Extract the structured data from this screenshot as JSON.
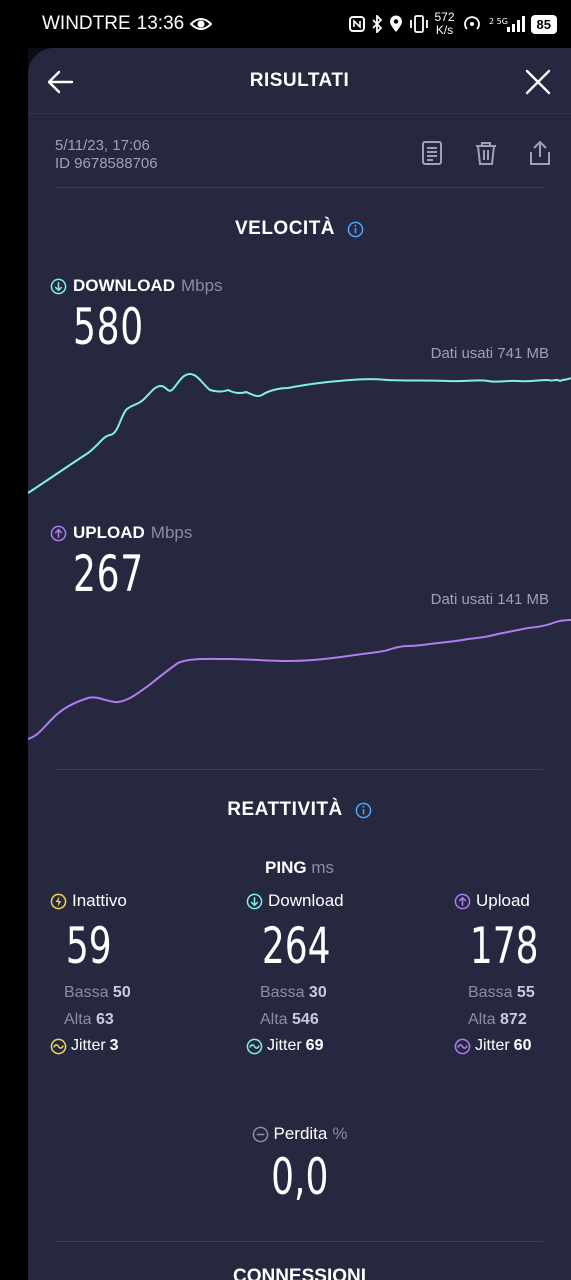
{
  "statusbar": {
    "carrier": "WINDTRE",
    "time": "13:36",
    "net_speed_value": "572",
    "net_speed_unit": "K/s",
    "battery": "85"
  },
  "header": {
    "title": "RISULTATI"
  },
  "meta": {
    "datetime": "5/11/23, 17:06",
    "id": "ID 9678588706"
  },
  "speed": {
    "section_title": "VELOCITÀ",
    "download": {
      "label": "DOWNLOAD",
      "unit": "Mbps",
      "value": "580",
      "data_used": "Dati usati 741 MB",
      "color": "#7ff0e6"
    },
    "upload": {
      "label": "UPLOAD",
      "unit": "Mbps",
      "value": "267",
      "data_used": "Dati usati 141 MB",
      "color": "#b07cf0"
    }
  },
  "reactivity": {
    "section_title": "REATTIVITÀ",
    "ping_label": "PING",
    "ping_unit": "ms",
    "columns": [
      {
        "label": "Inattivo",
        "value": "59",
        "low_label": "Bassa",
        "low": "50",
        "high_label": "Alta",
        "high": "63",
        "jitter_label": "Jitter",
        "jitter": "3",
        "color": "#f2d65a"
      },
      {
        "label": "Download",
        "value": "264",
        "low_label": "Bassa",
        "low": "30",
        "high_label": "Alta",
        "high": "546",
        "jitter_label": "Jitter",
        "jitter": "69",
        "color": "#7ff0e6"
      },
      {
        "label": "Upload",
        "value": "178",
        "low_label": "Bassa",
        "low": "55",
        "high_label": "Alta",
        "high": "872",
        "jitter_label": "Jitter",
        "jitter": "60",
        "color": "#b07cf0"
      }
    ],
    "loss_label": "Perdita",
    "loss_unit": "%",
    "loss_value": "0,0"
  },
  "connections": {
    "section_title": "CONNESSIONI"
  }
}
